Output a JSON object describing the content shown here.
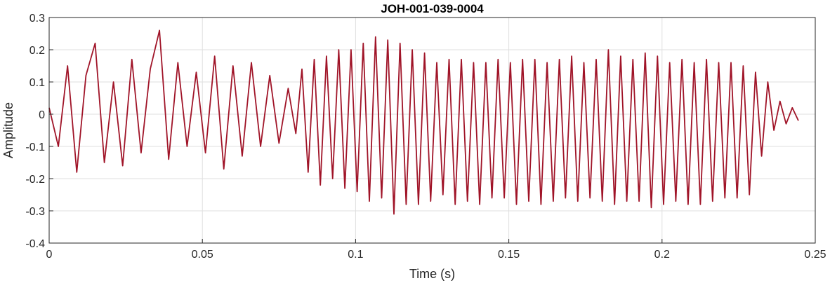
{
  "chart_data": {
    "type": "line",
    "title": "JOH-001-039-0004",
    "xlabel": "Time (s)",
    "ylabel": "Amplitude",
    "xlim": [
      0,
      0.25
    ],
    "ylim": [
      -0.4,
      0.3
    ],
    "xticks": [
      0,
      0.05,
      0.1,
      0.15,
      0.2,
      0.25
    ],
    "xtick_labels": [
      "0",
      "0.05",
      "0.1",
      "0.15",
      "0.2",
      "0.25"
    ],
    "yticks": [
      -0.4,
      -0.3,
      -0.2,
      -0.1,
      0,
      0.1,
      0.2,
      0.3
    ],
    "ytick_labels": [
      "-0.4",
      "-0.3",
      "-0.2",
      "-0.1",
      "0",
      "0.1",
      "0.2",
      "0.3"
    ],
    "grid": true,
    "series": [
      {
        "color": "#a01428",
        "x": [
          0,
          0.003,
          0.006,
          0.009,
          0.012,
          0.015,
          0.018,
          0.021,
          0.024,
          0.027,
          0.03,
          0.033,
          0.036,
          0.039,
          0.042,
          0.045,
          0.048,
          0.051,
          0.054,
          0.057,
          0.06,
          0.063,
          0.066,
          0.069,
          0.072,
          0.075,
          0.078,
          0.0805,
          0.0825,
          0.0845,
          0.0865,
          0.0885,
          0.0905,
          0.0925,
          0.0945,
          0.0965,
          0.0985,
          0.1005,
          0.1025,
          0.1045,
          0.1065,
          0.1085,
          0.1105,
          0.1125,
          0.1145,
          0.1165,
          0.1185,
          0.1205,
          0.1225,
          0.1245,
          0.1265,
          0.1285,
          0.1305,
          0.1325,
          0.1345,
          0.1365,
          0.1385,
          0.1405,
          0.1425,
          0.1445,
          0.1465,
          0.1485,
          0.1505,
          0.1525,
          0.1545,
          0.1565,
          0.1585,
          0.1605,
          0.1625,
          0.1645,
          0.1665,
          0.1685,
          0.1705,
          0.1725,
          0.1745,
          0.1765,
          0.1785,
          0.1805,
          0.1825,
          0.1845,
          0.1865,
          0.1885,
          0.1905,
          0.1925,
          0.1945,
          0.1965,
          0.1985,
          0.2005,
          0.2025,
          0.2045,
          0.2065,
          0.2085,
          0.2105,
          0.2125,
          0.2145,
          0.2165,
          0.2185,
          0.2205,
          0.2225,
          0.2245,
          0.2265,
          0.2285,
          0.2305,
          0.2325,
          0.2345,
          0.2365,
          0.2385,
          0.2405,
          0.2425,
          0.2445
        ],
        "y": [
          0.02,
          -0.1,
          0.15,
          -0.18,
          0.12,
          0.22,
          -0.15,
          0.1,
          -0.16,
          0.17,
          -0.12,
          0.14,
          0.26,
          -0.14,
          0.16,
          -0.1,
          0.13,
          -0.12,
          0.18,
          -0.17,
          0.15,
          -0.13,
          0.16,
          -0.1,
          0.12,
          -0.09,
          0.08,
          -0.06,
          0.14,
          -0.18,
          0.17,
          -0.22,
          0.18,
          -0.2,
          0.2,
          -0.23,
          0.2,
          -0.24,
          0.22,
          -0.27,
          0.24,
          -0.26,
          0.23,
          -0.31,
          0.22,
          -0.28,
          0.2,
          -0.28,
          0.19,
          -0.27,
          0.16,
          -0.25,
          0.17,
          -0.28,
          0.17,
          -0.27,
          0.16,
          -0.28,
          0.16,
          -0.26,
          0.17,
          -0.26,
          0.16,
          -0.28,
          0.17,
          -0.27,
          0.17,
          -0.28,
          0.16,
          -0.27,
          0.17,
          -0.26,
          0.18,
          -0.27,
          0.16,
          -0.26,
          0.17,
          -0.27,
          0.2,
          -0.28,
          0.18,
          -0.27,
          0.17,
          -0.27,
          0.19,
          -0.29,
          0.18,
          -0.28,
          0.16,
          -0.27,
          0.17,
          -0.28,
          0.16,
          -0.28,
          0.17,
          -0.27,
          0.16,
          -0.26,
          0.16,
          -0.26,
          0.15,
          -0.25,
          0.13,
          -0.13,
          0.1,
          -0.05,
          0.04,
          -0.03,
          0.02,
          -0.02
        ]
      }
    ]
  }
}
